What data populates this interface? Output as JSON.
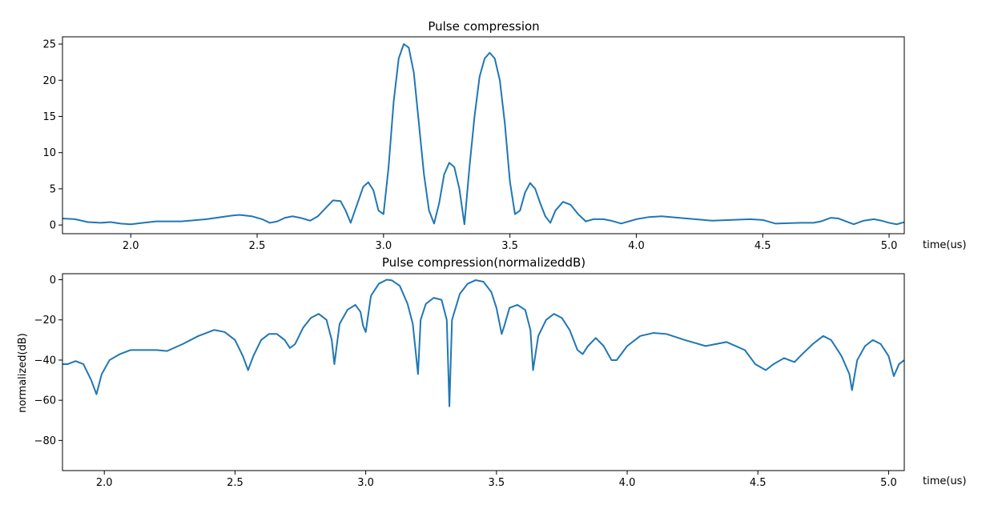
{
  "chart_data": [
    {
      "type": "line",
      "title": "Pulse compression",
      "xlabel": "time(us)",
      "ylabel": "",
      "xlim": [
        1.73,
        5.06
      ],
      "ylim": [
        -1.2,
        26.0
      ],
      "xticks": [
        {
          "value": 2.0,
          "label": "2.0"
        },
        {
          "value": 2.5,
          "label": "2.5"
        },
        {
          "value": 3.0,
          "label": "3.0"
        },
        {
          "value": 3.5,
          "label": "3.5"
        },
        {
          "value": 4.0,
          "label": "4.0"
        },
        {
          "value": 4.5,
          "label": "4.5"
        },
        {
          "value": 5.0,
          "label": "5.0"
        }
      ],
      "yticks": [
        {
          "value": 0,
          "label": "0"
        },
        {
          "value": 5,
          "label": "5"
        },
        {
          "value": 10,
          "label": "10"
        },
        {
          "value": 15,
          "label": "15"
        },
        {
          "value": 20,
          "label": "20"
        },
        {
          "value": 25,
          "label": "25"
        }
      ],
      "grid": false,
      "color": "#1f77b4",
      "series": [
        {
          "x": [
            1.73,
            1.78,
            1.83,
            1.88,
            1.92,
            1.96,
            2.0,
            2.05,
            2.1,
            2.2,
            2.3,
            2.4,
            2.43,
            2.48,
            2.52,
            2.55,
            2.58,
            2.61,
            2.64,
            2.67,
            2.71,
            2.74,
            2.77,
            2.8,
            2.83,
            2.85,
            2.87,
            2.9,
            2.92,
            2.94,
            2.96,
            2.98,
            3.0,
            3.02,
            3.04,
            3.06,
            3.08,
            3.1,
            3.12,
            3.14,
            3.16,
            3.18,
            3.2,
            3.22,
            3.24,
            3.26,
            3.28,
            3.3,
            3.32,
            3.34,
            3.36,
            3.38,
            3.4,
            3.42,
            3.44,
            3.46,
            3.48,
            3.5,
            3.52,
            3.54,
            3.56,
            3.58,
            3.6,
            3.62,
            3.64,
            3.66,
            3.68,
            3.71,
            3.74,
            3.77,
            3.8,
            3.83,
            3.87,
            3.9,
            3.94,
            3.97,
            4.0,
            4.05,
            4.1,
            4.2,
            4.3,
            4.45,
            4.5,
            4.55,
            4.65,
            4.7,
            4.73,
            4.77,
            4.8,
            4.83,
            4.86,
            4.9,
            4.94,
            4.97,
            5.0,
            5.03,
            5.06
          ],
          "y": [
            0.9,
            0.8,
            0.4,
            0.3,
            0.4,
            0.2,
            0.1,
            0.3,
            0.5,
            0.5,
            0.8,
            1.3,
            1.4,
            1.2,
            0.8,
            0.3,
            0.5,
            1.0,
            1.2,
            1.0,
            0.6,
            1.2,
            2.3,
            3.4,
            3.3,
            2.0,
            0.3,
            3.3,
            5.3,
            5.9,
            4.8,
            2.0,
            1.5,
            8.0,
            17.0,
            23.0,
            25.0,
            24.5,
            21.0,
            14.0,
            7.0,
            2.0,
            0.2,
            3.0,
            7.0,
            8.6,
            8.0,
            5.0,
            0.1,
            8.0,
            15.0,
            20.5,
            23.0,
            23.8,
            23.0,
            20.0,
            14.0,
            6.0,
            1.5,
            2.0,
            4.5,
            5.8,
            5.0,
            3.0,
            1.2,
            0.3,
            2.0,
            3.2,
            2.8,
            1.5,
            0.5,
            0.8,
            0.8,
            0.6,
            0.2,
            0.5,
            0.8,
            1.1,
            1.2,
            0.9,
            0.6,
            0.8,
            0.7,
            0.2,
            0.3,
            0.3,
            0.5,
            1.0,
            0.9,
            0.5,
            0.1,
            0.6,
            0.8,
            0.6,
            0.3,
            0.1,
            0.4
          ]
        }
      ]
    },
    {
      "type": "line",
      "title": "Pulse compression(normalizeddB)",
      "xlabel": "time(us)",
      "ylabel": "normalized(dB)",
      "xlim": [
        1.84,
        5.06
      ],
      "ylim": [
        -95,
        3
      ],
      "xticks": [
        {
          "value": 2.0,
          "label": "2.0"
        },
        {
          "value": 2.5,
          "label": "2.5"
        },
        {
          "value": 3.0,
          "label": "3.0"
        },
        {
          "value": 3.5,
          "label": "3.5"
        },
        {
          "value": 4.0,
          "label": "4.0"
        },
        {
          "value": 4.5,
          "label": "4.5"
        },
        {
          "value": 5.0,
          "label": "5.0"
        }
      ],
      "yticks": [
        {
          "value": 0,
          "label": "0"
        },
        {
          "value": -20,
          "label": "−20"
        },
        {
          "value": -40,
          "label": "−40"
        },
        {
          "value": -60,
          "label": "−60"
        },
        {
          "value": -80,
          "label": "−80"
        }
      ],
      "grid": false,
      "color": "#1f77b4",
      "series": [
        {
          "x": [
            1.84,
            1.86,
            1.89,
            1.92,
            1.95,
            1.97,
            1.99,
            2.02,
            2.06,
            2.1,
            2.15,
            2.2,
            2.24,
            2.3,
            2.36,
            2.42,
            2.46,
            2.5,
            2.53,
            2.55,
            2.57,
            2.6,
            2.63,
            2.66,
            2.69,
            2.71,
            2.73,
            2.76,
            2.79,
            2.82,
            2.85,
            2.87,
            2.88,
            2.9,
            2.93,
            2.96,
            2.98,
            2.99,
            3.0,
            3.02,
            3.05,
            3.08,
            3.1,
            3.13,
            3.16,
            3.18,
            3.2,
            3.21,
            3.23,
            3.26,
            3.29,
            3.31,
            3.32,
            3.33,
            3.36,
            3.39,
            3.42,
            3.45,
            3.48,
            3.5,
            3.52,
            3.53,
            3.55,
            3.58,
            3.61,
            3.63,
            3.64,
            3.66,
            3.69,
            3.72,
            3.75,
            3.78,
            3.81,
            3.83,
            3.85,
            3.88,
            3.91,
            3.94,
            3.96,
            4.0,
            4.05,
            4.1,
            4.15,
            4.22,
            4.3,
            4.38,
            4.45,
            4.49,
            4.53,
            4.56,
            4.6,
            4.64,
            4.67,
            4.71,
            4.75,
            4.78,
            4.82,
            4.85,
            4.86,
            4.88,
            4.91,
            4.94,
            4.97,
            5.0,
            5.02,
            5.04,
            5.06
          ],
          "y": [
            -42,
            -42,
            -40.5,
            -42,
            -50,
            -57,
            -47,
            -40,
            -37,
            -35,
            -35,
            -35,
            -35.5,
            -32,
            -28,
            -25,
            -26,
            -30,
            -38,
            -45,
            -38,
            -30,
            -27,
            -27,
            -30,
            -34,
            -32,
            -24,
            -19,
            -17,
            -20,
            -30,
            -42,
            -22,
            -15,
            -12.5,
            -16,
            -23,
            -26,
            -8,
            -2,
            0,
            -0.3,
            -3,
            -12,
            -22,
            -47,
            -20,
            -12,
            -9,
            -10,
            -20,
            -63,
            -20,
            -7,
            -2,
            -0.2,
            -1,
            -6,
            -14,
            -27,
            -23,
            -14,
            -12.5,
            -15,
            -25,
            -45,
            -28,
            -20,
            -17,
            -19,
            -25,
            -35,
            -37,
            -33,
            -29,
            -33,
            -40,
            -40,
            -33,
            -28,
            -26.5,
            -27,
            -30,
            -33,
            -31,
            -35,
            -42,
            -45,
            -42,
            -39,
            -41,
            -37,
            -32,
            -28,
            -30,
            -38,
            -47,
            -55,
            -40,
            -33,
            -30,
            -32,
            -38,
            -48,
            -42,
            -40
          ]
        }
      ]
    }
  ]
}
